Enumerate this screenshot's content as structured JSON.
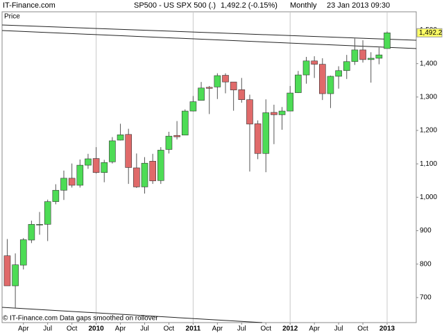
{
  "chart_data": {
    "type": "candlestick",
    "site": "IT-Finance.com",
    "title": "SP500 - US SPX 500 (.)",
    "quote": "1,492.2 (-0.15%)",
    "period": "Monthly",
    "timestamp": "23 Jan 2013 09:30",
    "panel_label": "Price",
    "footer": "© IT-Finance.com Data gaps smoothed on rollover",
    "up_color": "#4ddc55",
    "down_color": "#e06a6a",
    "categories": [
      null,
      null,
      "Apr",
      null,
      null,
      "Jul",
      null,
      null,
      "Oct",
      null,
      null,
      "2010",
      null,
      null,
      "Apr",
      null,
      null,
      "Jul",
      null,
      null,
      "Oct",
      null,
      null,
      "2011",
      null,
      null,
      "Apr",
      null,
      null,
      "Jul",
      null,
      null,
      "Oct",
      null,
      null,
      "2012",
      null,
      null,
      "Apr",
      null,
      null,
      "Jul",
      null,
      null,
      "Oct",
      null,
      null,
      "2013"
    ],
    "open": [
      825,
      735,
      797,
      872,
      919,
      919,
      987,
      1021,
      1057,
      1036,
      1096,
      1116,
      1074,
      1106,
      1171,
      1188,
      1088,
      1031,
      1108,
      1050,
      1143,
      1185,
      1186,
      1258,
      1290,
      1329,
      1330,
      1365,
      1345,
      1322,
      1292,
      1220,
      1131,
      1254,
      1247,
      1258,
      1313,
      1366,
      1408,
      1398,
      1310,
      1362,
      1379,
      1406,
      1441,
      1412,
      1416,
      1445
    ],
    "high": [
      875,
      832,
      878,
      930,
      956,
      993,
      1039,
      1080,
      1101,
      1113,
      1130,
      1150,
      1112,
      1180,
      1220,
      1205,
      1131,
      1120,
      1130,
      1150,
      1196,
      1228,
      1263,
      1303,
      1345,
      1333,
      1371,
      1371,
      1345,
      1357,
      1307,
      1230,
      1293,
      1277,
      1270,
      1333,
      1378,
      1420,
      1422,
      1416,
      1364,
      1392,
      1426,
      1475,
      1470,
      1434,
      1448,
      1496
    ],
    "low": [
      735,
      667,
      784,
      863,
      888,
      869,
      979,
      992,
      1029,
      1029,
      1085,
      1071,
      1045,
      1101,
      1170,
      1040,
      1028,
      1011,
      1040,
      1040,
      1131,
      1173,
      1186,
      1257,
      1290,
      1249,
      1294,
      1311,
      1259,
      1283,
      1077,
      1114,
      1075,
      1159,
      1202,
      1258,
      1312,
      1340,
      1357,
      1291,
      1267,
      1325,
      1354,
      1396,
      1403,
      1343,
      1398,
      1445
    ],
    "close": [
      735,
      798,
      873,
      919,
      919,
      987,
      1021,
      1057,
      1036,
      1096,
      1115,
      1074,
      1104,
      1169,
      1187,
      1089,
      1031,
      1102,
      1049,
      1141,
      1183,
      1181,
      1258,
      1286,
      1327,
      1326,
      1364,
      1345,
      1321,
      1292,
      1219,
      1131,
      1253,
      1247,
      1258,
      1312,
      1366,
      1408,
      1398,
      1310,
      1362,
      1379,
      1406,
      1441,
      1412,
      1416,
      1426,
      1492
    ],
    "ylim": [
      625,
      1555
    ],
    "yticks": [
      700,
      800,
      900,
      {
        "value": 1000,
        "label": "1,000"
      },
      {
        "value": 1100,
        "label": "1,100"
      },
      {
        "value": 1200,
        "label": "1,200"
      },
      {
        "value": 1300,
        "label": "1,300"
      },
      {
        "value": 1400,
        "label": "1,400"
      },
      {
        "value": 1500,
        "label": "1,500"
      }
    ],
    "price_marker": {
      "value": 1492.2,
      "label": "1,492.2"
    }
  }
}
